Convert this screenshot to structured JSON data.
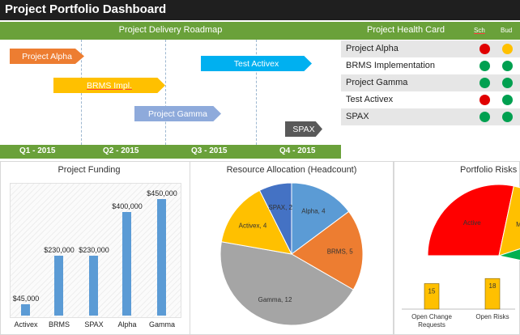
{
  "title": "Project Portfolio Dashboard",
  "roadmap": {
    "header": "Project Delivery Roadmap",
    "quarters": [
      "Q1 - 2015",
      "Q2 - 2015",
      "Q3 - 2015",
      "Q4 - 2015"
    ],
    "bars": [
      {
        "label": "Project Alpha",
        "color": "#ed7d31"
      },
      {
        "label": "BRMS Impl.",
        "color": "#ffc000"
      },
      {
        "label": "Project Gamma",
        "color": "#8eaadb"
      },
      {
        "label": "Test Activex",
        "color": "#00b0f0"
      },
      {
        "label": "SPAX",
        "color": "#595959"
      }
    ]
  },
  "health": {
    "header": "Project Health Card",
    "col_schedule": "Sch",
    "col_budget": "Bud",
    "rows": [
      {
        "name": "Project Alpha",
        "schedule": "#e00000",
        "budget": "#ffc000"
      },
      {
        "name": "BRMS Implementation",
        "schedule": "#00a050",
        "budget": "#00a050"
      },
      {
        "name": "Project Gamma",
        "schedule": "#00a050",
        "budget": "#00a050"
      },
      {
        "name": "Test Activex",
        "schedule": "#e00000",
        "budget": "#00a050"
      },
      {
        "name": "SPAX",
        "schedule": "#00a050",
        "budget": "#00a050"
      }
    ]
  },
  "chart_data": [
    {
      "type": "bar",
      "title": "Project Funding",
      "categories": [
        "Activex",
        "BRMS",
        "SPAX",
        "Alpha",
        "Gamma"
      ],
      "values": [
        45000,
        230000,
        230000,
        400000,
        450000
      ],
      "value_labels": [
        "$45,000",
        "$230,000",
        "$230,000",
        "$400,000",
        "$450,000"
      ],
      "ylim": [
        0,
        500000
      ],
      "color": "#5b9bd5"
    },
    {
      "type": "pie",
      "title": "Resource Allocation (Headcount)",
      "slices": [
        {
          "name": "Alpha",
          "value": 4,
          "label": "Alpha, 4",
          "color": "#5b9bd5"
        },
        {
          "name": "BRMS",
          "value": 5,
          "label": "BRMS, 5",
          "color": "#ed7d31"
        },
        {
          "name": "Gamma",
          "value": 12,
          "label": "Gamma, 12",
          "color": "#a5a5a5"
        },
        {
          "name": "Activex",
          "value": 4,
          "label": "Activex, 4",
          "color": "#ffc000"
        },
        {
          "name": "SPAX",
          "value": 2,
          "label": "SPAX, 2",
          "color": "#4472c4"
        }
      ]
    },
    {
      "type": "pie",
      "title": "Portfolio Risks",
      "slices": [
        {
          "name": "Active",
          "label": "Active",
          "color": "#ff0000"
        },
        {
          "name": "Medium",
          "label": "Medium",
          "color": "#ffc000"
        },
        {
          "name": "Low",
          "label": "",
          "color": "#00b050"
        }
      ]
    },
    {
      "type": "bar",
      "categories": [
        "Open Change Requests",
        "Open Risks"
      ],
      "values": [
        15,
        18
      ],
      "value_labels": [
        "15",
        "18"
      ],
      "color": "#ffc000"
    }
  ]
}
